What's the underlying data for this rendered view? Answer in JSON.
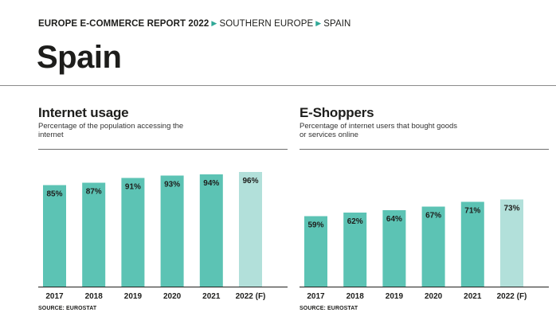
{
  "header": {
    "report": "EUROPE E-COMMERCE REPORT 2022",
    "region": "SOUTHERN EUROPE",
    "country": "SPAIN",
    "separator_icon": "triangle-right-icon",
    "accent_color": "#2fa897"
  },
  "page_title": "Spain",
  "colors": {
    "bar": "#5cc3b4",
    "bar_forecast": "#b2e0da"
  },
  "chart_data": [
    {
      "type": "bar",
      "title": "Internet usage",
      "subtitle": "Percentage of the population accessing the internet",
      "categories": [
        "2017",
        "2018",
        "2019",
        "2020",
        "2021",
        "2022 (F)"
      ],
      "values": [
        85,
        87,
        91,
        93,
        94,
        96
      ],
      "data_labels": [
        "85%",
        "87%",
        "91%",
        "93%",
        "94%",
        "96%"
      ],
      "forecast_index": 5,
      "ylim": [
        0,
        100
      ],
      "grid": false,
      "source": "SOURCE: EUROSTAT"
    },
    {
      "type": "bar",
      "title": "E-Shoppers",
      "subtitle": "Percentage of internet users that bought goods or services online",
      "categories": [
        "2017",
        "2018",
        "2019",
        "2020",
        "2021",
        "2022 (F)"
      ],
      "values": [
        59,
        62,
        64,
        67,
        71,
        73
      ],
      "data_labels": [
        "59%",
        "62%",
        "64%",
        "67%",
        "71%",
        "73%"
      ],
      "forecast_index": 5,
      "ylim": [
        0,
        100
      ],
      "grid": false,
      "source": "SOURCE: EUROSTAT"
    }
  ]
}
